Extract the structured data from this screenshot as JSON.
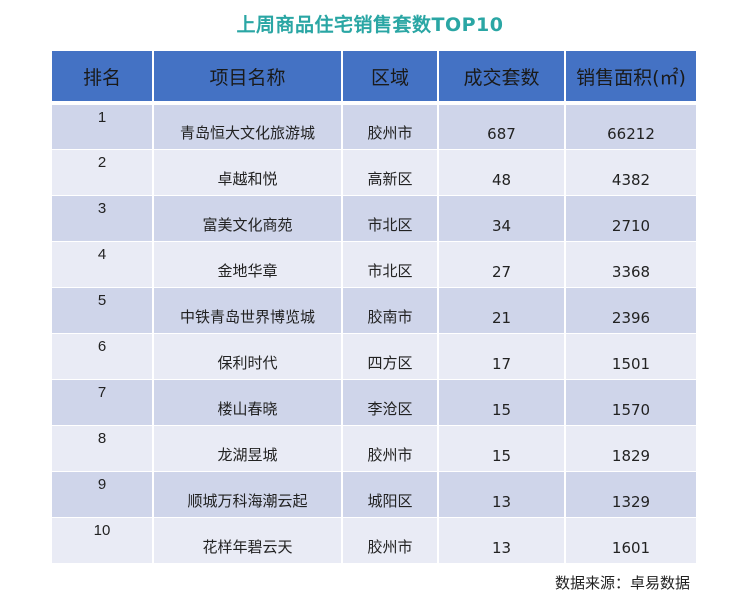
{
  "title": "上周商品住宅销售套数TOP10",
  "table": {
    "headers": {
      "rank": "排名",
      "name": "项目名称",
      "region": "区域",
      "units": "成交套数",
      "area": "销售面积(㎡)"
    },
    "rows": [
      {
        "rank": "1",
        "name": "青岛恒大文化旅游城",
        "region": "胶州市",
        "units": "687",
        "area": "66212"
      },
      {
        "rank": "2",
        "name": "卓越和悦",
        "region": "高新区",
        "units": "48",
        "area": "4382"
      },
      {
        "rank": "3",
        "name": "富美文化商苑",
        "region": "市北区",
        "units": "34",
        "area": "2710"
      },
      {
        "rank": "4",
        "name": "金地华章",
        "region": "市北区",
        "units": "27",
        "area": "3368"
      },
      {
        "rank": "5",
        "name": "中铁青岛世界博览城",
        "region": "胶南市",
        "units": "21",
        "area": "2396"
      },
      {
        "rank": "6",
        "name": "保利时代",
        "region": "四方区",
        "units": "17",
        "area": "1501"
      },
      {
        "rank": "7",
        "name": "楼山春晓",
        "region": "李沧区",
        "units": "15",
        "area": "1570"
      },
      {
        "rank": "8",
        "name": "龙湖昱城",
        "region": "胶州市",
        "units": "15",
        "area": "1829"
      },
      {
        "rank": "9",
        "name": "顺城万科海潮云起",
        "region": "城阳区",
        "units": "13",
        "area": "1329"
      },
      {
        "rank": "10",
        "name": "花样年碧云天",
        "region": "胶州市",
        "units": "13",
        "area": "1601"
      }
    ]
  },
  "source": "数据来源：卓易数据",
  "colors": {
    "title": "#2aa6a4",
    "header_bg": "#4472c4",
    "row_odd": "#cfd5ea",
    "row_even": "#e9ebf5"
  },
  "chart_data": {
    "type": "table",
    "title": "上周商品住宅销售套数TOP10",
    "columns": [
      "排名",
      "项目名称",
      "区域",
      "成交套数",
      "销售面积(㎡)"
    ],
    "rows": [
      [
        1,
        "青岛恒大文化旅游城",
        "胶州市",
        687,
        66212
      ],
      [
        2,
        "卓越和悦",
        "高新区",
        48,
        4382
      ],
      [
        3,
        "富美文化商苑",
        "市北区",
        34,
        2710
      ],
      [
        4,
        "金地华章",
        "市北区",
        27,
        3368
      ],
      [
        5,
        "中铁青岛世界博览城",
        "胶南市",
        21,
        2396
      ],
      [
        6,
        "保利时代",
        "四方区",
        17,
        1501
      ],
      [
        7,
        "楼山春晓",
        "李沧区",
        15,
        1570
      ],
      [
        8,
        "龙湖昱城",
        "胶州市",
        15,
        1829
      ],
      [
        9,
        "顺城万科海潮云起",
        "城阳区",
        13,
        1329
      ],
      [
        10,
        "花样年碧云天",
        "胶州市",
        13,
        1601
      ]
    ],
    "source": "数据来源：卓易数据"
  }
}
